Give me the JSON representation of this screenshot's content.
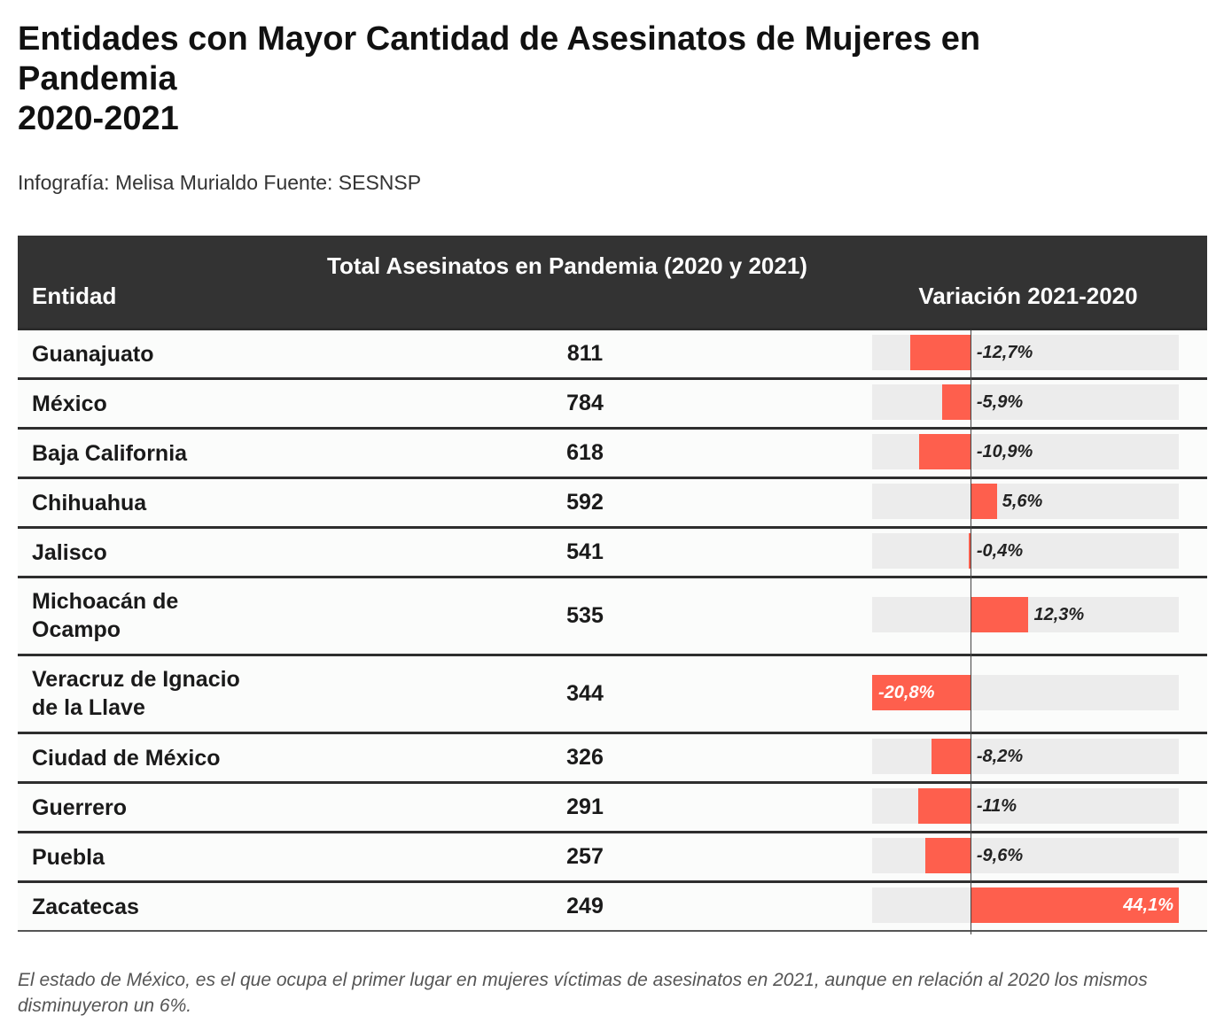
{
  "title": {
    "line1": "Entidades con Mayor Cantidad de Asesinatos de Mujeres en",
    "line2": "Pandemia",
    "line3": "2020-2021"
  },
  "subtitle": "Infografía: Melisa Murialdo Fuente: SESNSP",
  "footnote": "El estado de México, es el que ocupa el primer lugar en mujeres víctimas de asesinatos en 2021, aunque en relación al 2020 los mismos disminuyeron un 6%.",
  "colors": {
    "bar": "#fe5f4d",
    "bar_bg": "#ececec",
    "header_bg": "#333333"
  },
  "chart_data": {
    "type": "table",
    "columns": [
      "Entidad",
      "Total Asesinatos en Pandemia (2020 y 2021)",
      "Variación 2021-2020"
    ],
    "bar_range": [
      -20.8,
      44.1
    ],
    "rows": [
      {
        "entidad": "Guanajuato",
        "total": 811,
        "variacion": -12.7,
        "label": "-12,7%"
      },
      {
        "entidad": "México",
        "total": 784,
        "variacion": -5.9,
        "label": "-5,9%"
      },
      {
        "entidad": "Baja California",
        "total": 618,
        "variacion": -10.9,
        "label": "-10,9%"
      },
      {
        "entidad": "Chihuahua",
        "total": 592,
        "variacion": 5.6,
        "label": "5,6%"
      },
      {
        "entidad": "Jalisco",
        "total": 541,
        "variacion": -0.4,
        "label": "-0,4%"
      },
      {
        "entidad": "Michoacán de Ocampo",
        "total": 535,
        "variacion": 12.3,
        "label": "12,3%"
      },
      {
        "entidad": "Veracruz de Ignacio de la Llave",
        "total": 344,
        "variacion": -20.8,
        "label": "-20,8%"
      },
      {
        "entidad": "Ciudad de México",
        "total": 326,
        "variacion": -8.2,
        "label": "-8,2%"
      },
      {
        "entidad": "Guerrero",
        "total": 291,
        "variacion": -11,
        "label": "-11%"
      },
      {
        "entidad": "Puebla",
        "total": 257,
        "variacion": -9.6,
        "label": "-9,6%"
      },
      {
        "entidad": "Zacatecas",
        "total": 249,
        "variacion": 44.1,
        "label": "44,1%"
      }
    ]
  }
}
